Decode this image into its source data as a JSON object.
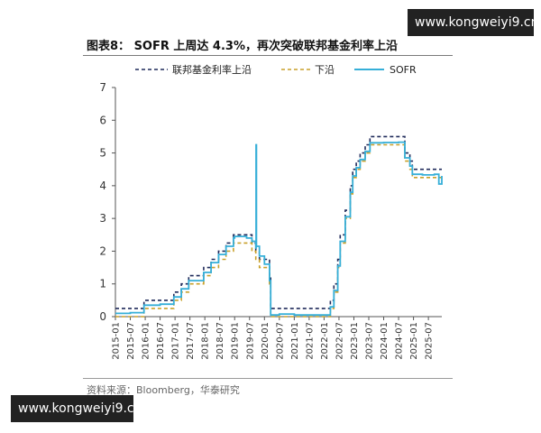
{
  "watermark": {
    "top": "www.kongweiyi9.cn",
    "bottom": "www.kongweiyi9.cn"
  },
  "figure_title": "图表8：  SOFR 上周达 4.3%，再次突破联邦基金利率上沿",
  "source_note": "资料来源：Bloomberg，华泰研究",
  "colors": {
    "upper": "#1f2a5a",
    "lower": "#c8a02a",
    "sofr": "#36afd8",
    "axis": "#555555"
  },
  "chart_data": {
    "type": "line",
    "title": "",
    "xlabel": "",
    "ylabel": "",
    "ylim": [
      0,
      7
    ],
    "yticks": [
      "0",
      "1",
      "2",
      "3",
      "4",
      "5",
      "6",
      "7"
    ],
    "x_range": [
      2015.0,
      2025.95
    ],
    "xticks": [
      "2015-01",
      "2015-07",
      "2016-01",
      "2016-07",
      "2017-01",
      "2017-07",
      "2018-01",
      "2018-07",
      "2019-01",
      "2019-07",
      "2020-01",
      "2020-07",
      "2021-01",
      "2021-07",
      "2022-01",
      "2022-07",
      "2023-01",
      "2023-07",
      "2024-01",
      "2024-07",
      "2025-01",
      "2025-07"
    ],
    "legend_position": "top",
    "series": [
      {
        "name": "联邦基金利率上沿",
        "style": "dashed",
        "color": "#1f2a5a",
        "x": [
          2015.0,
          2015.96,
          2016.96,
          2017.21,
          2017.46,
          2017.96,
          2018.21,
          2018.46,
          2018.71,
          2018.96,
          2019.58,
          2019.71,
          2019.83,
          2020.17,
          2020.21,
          2022.21,
          2022.33,
          2022.46,
          2022.54,
          2022.71,
          2022.88,
          2022.96,
          2023.08,
          2023.21,
          2023.38,
          2023.54,
          2024.71,
          2024.88,
          2024.96,
          2025.95
        ],
        "y": [
          0.25,
          0.5,
          0.75,
          1.0,
          1.25,
          1.5,
          1.75,
          2.0,
          2.25,
          2.5,
          2.25,
          2.0,
          1.75,
          1.25,
          0.25,
          0.5,
          1.0,
          1.75,
          2.5,
          3.25,
          4.0,
          4.5,
          4.75,
          5.0,
          5.25,
          5.5,
          5.0,
          4.75,
          4.5,
          4.5
        ]
      },
      {
        "name": "下沿",
        "style": "dashed",
        "color": "#c8a02a",
        "x": [
          2015.0,
          2015.96,
          2016.96,
          2017.21,
          2017.46,
          2017.96,
          2018.21,
          2018.46,
          2018.71,
          2018.96,
          2019.58,
          2019.71,
          2019.83,
          2020.17,
          2020.21,
          2022.21,
          2022.33,
          2022.46,
          2022.54,
          2022.71,
          2022.88,
          2022.96,
          2023.08,
          2023.21,
          2023.38,
          2023.54,
          2024.71,
          2024.88,
          2024.96,
          2025.95
        ],
        "y": [
          0.0,
          0.25,
          0.5,
          0.75,
          1.0,
          1.25,
          1.5,
          1.75,
          2.0,
          2.25,
          2.0,
          1.75,
          1.5,
          1.0,
          0.0,
          0.25,
          0.75,
          1.5,
          2.25,
          3.0,
          3.75,
          4.25,
          4.5,
          4.75,
          5.0,
          5.25,
          4.75,
          4.5,
          4.25,
          4.25
        ]
      },
      {
        "name": "SOFR",
        "style": "solid",
        "color": "#36afd8",
        "x": [
          2015.0,
          2015.5,
          2015.96,
          2016.5,
          2016.96,
          2017.21,
          2017.46,
          2017.96,
          2018.21,
          2018.46,
          2018.71,
          2018.96,
          2019.0,
          2019.2,
          2019.4,
          2019.58,
          2019.71,
          2019.72,
          2019.73,
          2019.83,
          2020.0,
          2020.17,
          2020.21,
          2020.5,
          2021.0,
          2021.5,
          2022.0,
          2022.21,
          2022.33,
          2022.46,
          2022.54,
          2022.71,
          2022.88,
          2022.96,
          2023.08,
          2023.21,
          2023.38,
          2023.54,
          2024.0,
          2024.5,
          2024.71,
          2024.88,
          2024.96,
          2025.3,
          2025.7,
          2025.85,
          2025.95
        ],
        "y": [
          0.1,
          0.12,
          0.35,
          0.38,
          0.6,
          0.85,
          1.1,
          1.35,
          1.65,
          1.9,
          2.15,
          2.4,
          2.45,
          2.45,
          2.4,
          2.3,
          2.1,
          5.25,
          2.15,
          1.85,
          1.6,
          1.1,
          0.05,
          0.08,
          0.05,
          0.05,
          0.05,
          0.3,
          0.8,
          1.55,
          2.3,
          3.05,
          3.8,
          4.3,
          4.55,
          4.8,
          5.05,
          5.31,
          5.32,
          5.33,
          4.85,
          4.6,
          4.35,
          4.33,
          4.35,
          4.05,
          4.3
        ]
      }
    ]
  }
}
